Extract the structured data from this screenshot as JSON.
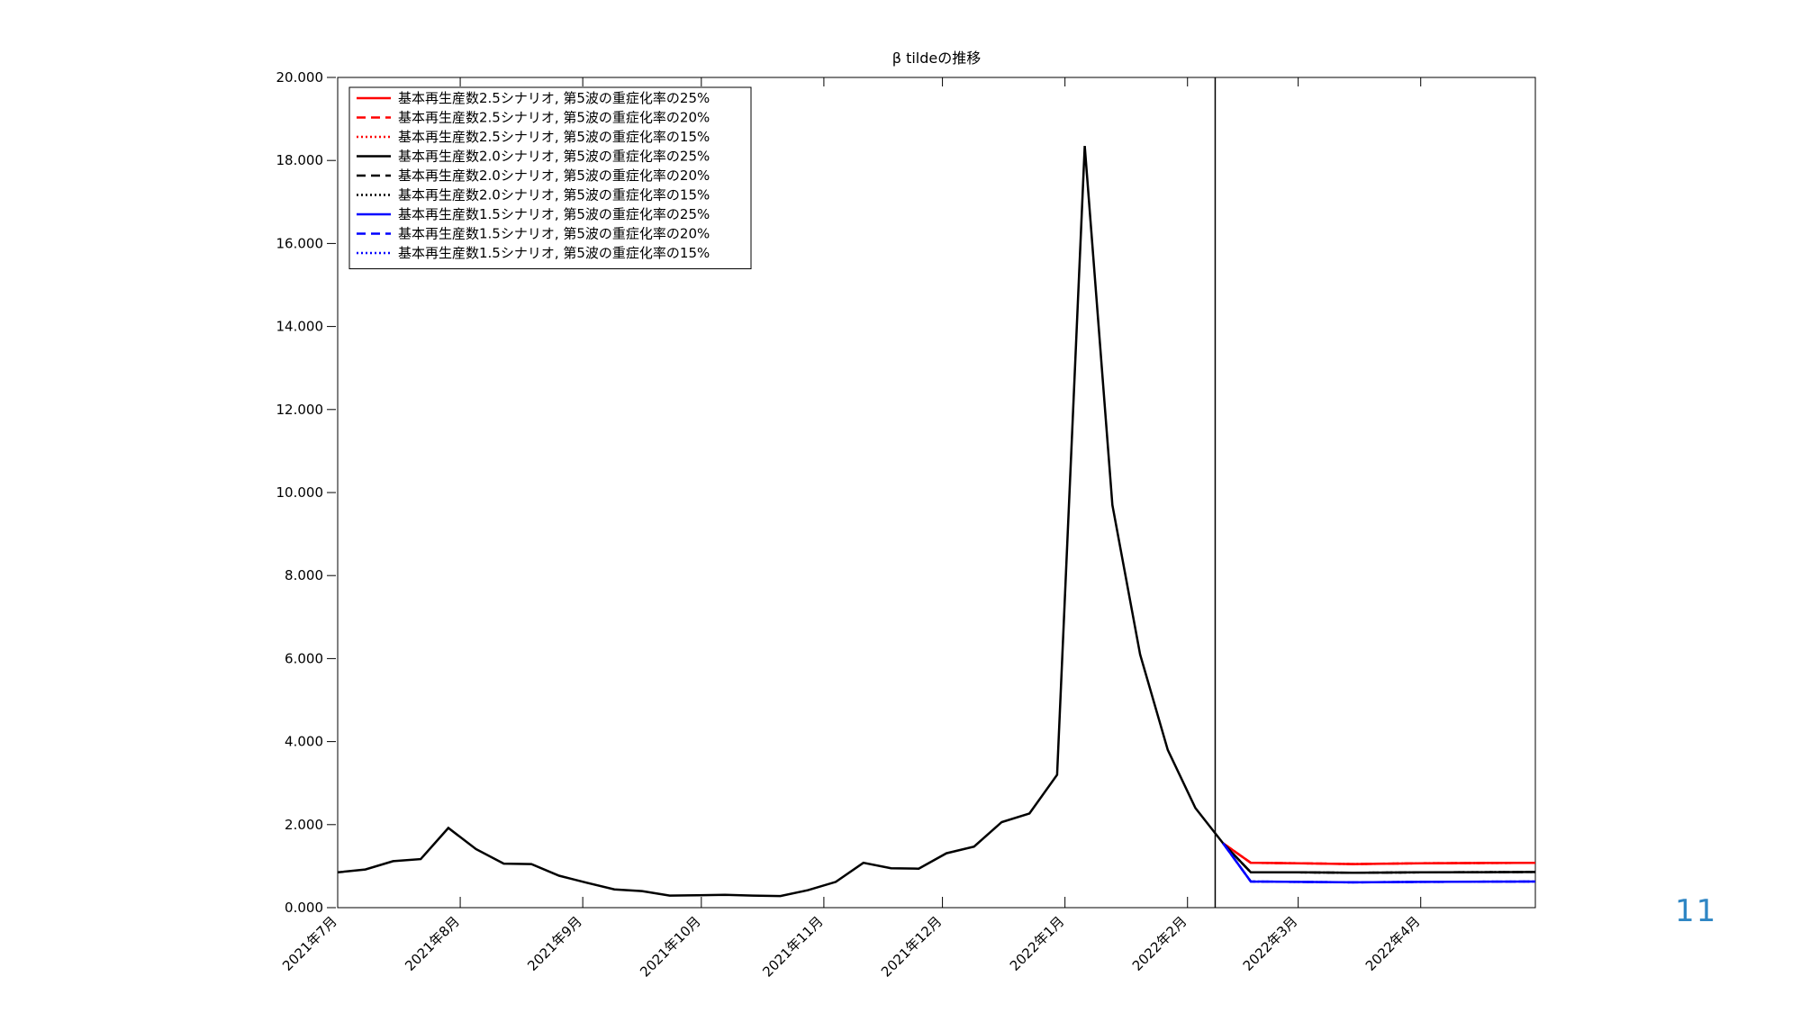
{
  "page_number": "11",
  "chart_data": {
    "type": "line",
    "title": "β tildeの推移",
    "xlabel": "",
    "ylabel": "",
    "ylim": [
      0,
      20
    ],
    "ytick_labels": [
      "0.000",
      "2.000",
      "4.000",
      "6.000",
      "8.000",
      "10.000",
      "12.000",
      "14.000",
      "16.000",
      "18.000",
      "20.000"
    ],
    "ytick_values": [
      0,
      2,
      4,
      6,
      8,
      10,
      12,
      14,
      16,
      18,
      20
    ],
    "x_range": [
      "2021-07-01",
      "2022-04-30"
    ],
    "xtick_dates": [
      "2021-07-01",
      "2021-08-01",
      "2021-09-01",
      "2021-10-01",
      "2021-11-01",
      "2021-12-01",
      "2022-01-01",
      "2022-02-01",
      "2022-03-01",
      "2022-04-01"
    ],
    "xtick_labels": [
      "2021年7月",
      "2021年8月",
      "2021年9月",
      "2021年10月",
      "2021年11月",
      "2021年12月",
      "2022年1月",
      "2022年2月",
      "2022年3月",
      "2022年4月"
    ],
    "vertical_line_date": "2022-02-08",
    "grid": false,
    "legend_position": "top-left",
    "history": {
      "dates": [
        "2021-07-01",
        "2021-07-08",
        "2021-07-15",
        "2021-07-22",
        "2021-07-29",
        "2021-08-05",
        "2021-08-12",
        "2021-08-19",
        "2021-08-26",
        "2021-09-02",
        "2021-09-09",
        "2021-09-16",
        "2021-09-23",
        "2021-09-30",
        "2021-10-07",
        "2021-10-14",
        "2021-10-21",
        "2021-10-28",
        "2021-11-04",
        "2021-11-11",
        "2021-11-18",
        "2021-11-25",
        "2021-12-02",
        "2021-12-09",
        "2021-12-16",
        "2021-12-23",
        "2021-12-30",
        "2022-01-06",
        "2022-01-13",
        "2022-01-20",
        "2022-01-27",
        "2022-02-03",
        "2022-02-10"
      ],
      "values": [
        0.85,
        0.92,
        1.12,
        1.17,
        1.92,
        1.41,
        1.06,
        1.05,
        0.77,
        0.6,
        0.44,
        0.4,
        0.29,
        0.3,
        0.31,
        0.29,
        0.28,
        0.42,
        0.62,
        1.08,
        0.95,
        0.94,
        1.31,
        1.47,
        2.06,
        2.27,
        3.2,
        18.35,
        9.7,
        6.1,
        3.8,
        2.4,
        1.55
      ]
    },
    "series": [
      {
        "name": "基本再生産数2.5シナリオ, 第5波の重症化率の25%",
        "color": "#ff0000",
        "dash": "solid",
        "x": [
          "2022-02-10",
          "2022-02-17",
          "2022-03-01",
          "2022-03-15",
          "2022-04-01",
          "2022-04-30"
        ],
        "y": [
          1.55,
          1.08,
          1.07,
          1.05,
          1.07,
          1.08
        ]
      },
      {
        "name": "基本再生産数2.5シナリオ, 第5波の重症化率の20%",
        "color": "#ff0000",
        "dash": "dashed",
        "x": [
          "2022-02-10",
          "2022-02-17",
          "2022-03-01",
          "2022-03-15",
          "2022-04-01",
          "2022-04-30"
        ],
        "y": [
          1.55,
          1.08,
          1.07,
          1.05,
          1.07,
          1.08
        ]
      },
      {
        "name": "基本再生産数2.5シナリオ, 第5波の重症化率の15%",
        "color": "#ff0000",
        "dash": "dotted",
        "x": [
          "2022-02-10",
          "2022-02-17",
          "2022-03-01",
          "2022-03-15",
          "2022-04-01",
          "2022-04-30"
        ],
        "y": [
          1.55,
          1.08,
          1.07,
          1.05,
          1.07,
          1.08
        ]
      },
      {
        "name": "基本再生産数2.0シナリオ, 第5波の重症化率の25%",
        "color": "#000000",
        "dash": "solid",
        "x": [
          "2022-02-10",
          "2022-02-17",
          "2022-03-01",
          "2022-03-15",
          "2022-04-01",
          "2022-04-30"
        ],
        "y": [
          1.55,
          0.85,
          0.85,
          0.84,
          0.85,
          0.86
        ]
      },
      {
        "name": "基本再生産数2.0シナリオ, 第5波の重症化率の20%",
        "color": "#000000",
        "dash": "dashed",
        "x": [
          "2022-02-10",
          "2022-02-17",
          "2022-03-01",
          "2022-03-15",
          "2022-04-01",
          "2022-04-30"
        ],
        "y": [
          1.55,
          0.85,
          0.85,
          0.84,
          0.85,
          0.86
        ]
      },
      {
        "name": "基本再生産数2.0シナリオ, 第5波の重症化率の15%",
        "color": "#000000",
        "dash": "dotted",
        "x": [
          "2022-02-10",
          "2022-02-17",
          "2022-03-01",
          "2022-03-15",
          "2022-04-01",
          "2022-04-30"
        ],
        "y": [
          1.55,
          0.85,
          0.85,
          0.84,
          0.85,
          0.86
        ]
      },
      {
        "name": "基本再生産数1.5シナリオ, 第5波の重症化率の25%",
        "color": "#0000ff",
        "dash": "solid",
        "x": [
          "2022-02-10",
          "2022-02-17",
          "2022-03-01",
          "2022-03-15",
          "2022-04-01",
          "2022-04-30"
        ],
        "y": [
          1.55,
          0.63,
          0.62,
          0.61,
          0.62,
          0.63
        ]
      },
      {
        "name": "基本再生産数1.5シナリオ, 第5波の重症化率の20%",
        "color": "#0000ff",
        "dash": "dashed",
        "x": [
          "2022-02-10",
          "2022-02-17",
          "2022-03-01",
          "2022-03-15",
          "2022-04-01",
          "2022-04-30"
        ],
        "y": [
          1.55,
          0.63,
          0.62,
          0.61,
          0.62,
          0.63
        ]
      },
      {
        "name": "基本再生産数1.5シナリオ, 第5波の重症化率の15%",
        "color": "#0000ff",
        "dash": "dotted",
        "x": [
          "2022-02-10",
          "2022-02-17",
          "2022-03-01",
          "2022-03-15",
          "2022-04-01",
          "2022-04-30"
        ],
        "y": [
          1.55,
          0.63,
          0.62,
          0.61,
          0.62,
          0.63
        ]
      }
    ]
  }
}
